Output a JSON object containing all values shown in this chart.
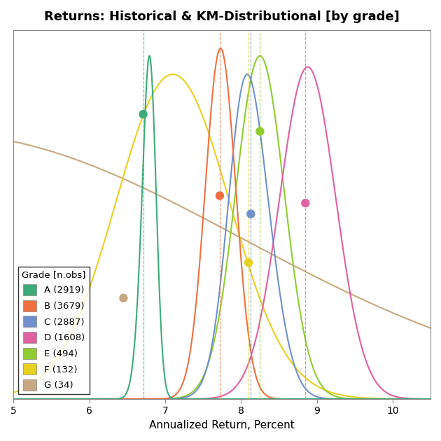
{
  "title": "Returns: Historical & KM-Distributional [by grade]",
  "xlabel": "Annualized Return, Percent",
  "xlim": [
    5,
    10.5
  ],
  "ylim": [
    0,
    1.0
  ],
  "grades": [
    "A",
    "B",
    "C",
    "D",
    "E",
    "F",
    "G"
  ],
  "n_obs": [
    2919,
    3679,
    2887,
    1608,
    494,
    132,
    34
  ],
  "colors": {
    "A": "#3dab7a",
    "B": "#f07040",
    "C": "#7090cc",
    "D": "#e060a0",
    "E": "#90cc30",
    "F": "#e8d020",
    "G": "#c8a882"
  },
  "curve_means": {
    "A": 6.74,
    "B": 7.73,
    "C": 8.15,
    "D": 8.88,
    "E": 8.25,
    "F": 7.1,
    "G": 4.0
  },
  "curve_stds": {
    "A": 0.1,
    "B": 0.2,
    "C": 0.28,
    "D": 0.37,
    "E": 0.32,
    "F": 0.75,
    "G": 4.0
  },
  "curve_peak_heights": {
    "A": 0.93,
    "B": 0.95,
    "C": 0.88,
    "D": 0.9,
    "E": 0.93,
    "F": 0.88,
    "G": 0.72
  },
  "dot_x": {
    "A": 6.71,
    "B": 7.72,
    "C": 8.13,
    "D": 8.85,
    "E": 8.25,
    "F": 8.1,
    "G": 6.45
  },
  "dot_y_frac": {
    "A": 0.83,
    "B": 0.58,
    "C": 0.57,
    "D": 0.59,
    "E": 0.78,
    "F": 0.42,
    "G": 0.38
  },
  "vline_grades": [
    "A",
    "B",
    "C",
    "D",
    "E",
    "F"
  ],
  "background_color": "#ffffff",
  "legend_title": "Grade [n.obs]"
}
